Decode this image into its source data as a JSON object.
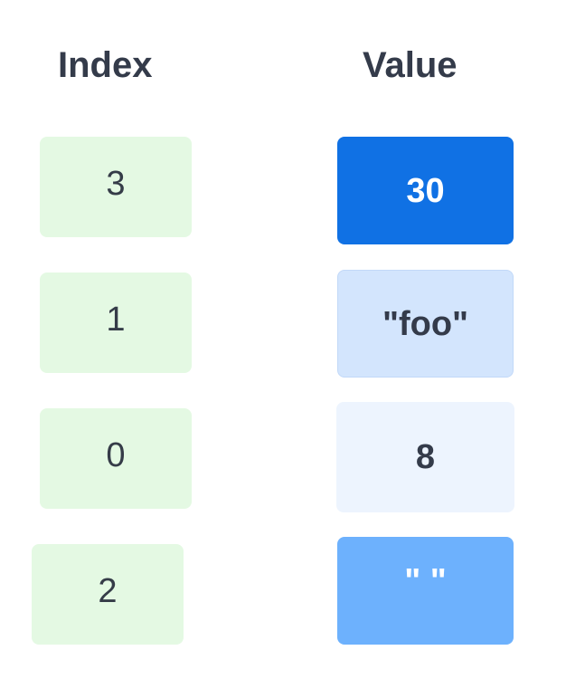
{
  "headers": {
    "index": "Index",
    "value": "Value"
  },
  "rows": [
    {
      "index": "3",
      "value": "30"
    },
    {
      "index": "1",
      "value": "\"foo\""
    },
    {
      "index": "0",
      "value": "8"
    },
    {
      "index": "2",
      "value": "\" \""
    }
  ],
  "colors": {
    "index_box": "#e4f9e3",
    "value_box_0": "#1071e4",
    "value_box_1": "#d3e5fd",
    "value_box_2": "#edf4fe",
    "value_box_3": "#6db1fd",
    "text_dark": "#343b4a",
    "text_light": "#ffffff"
  }
}
